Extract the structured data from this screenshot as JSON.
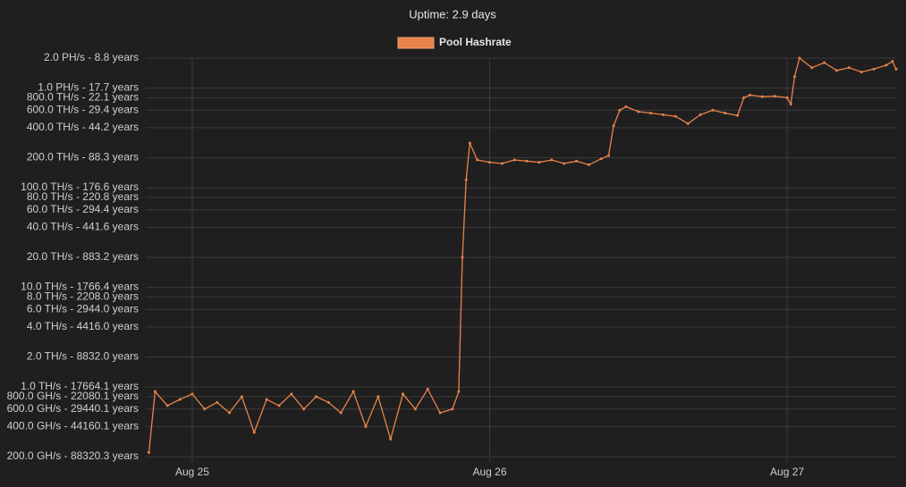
{
  "chart_data": {
    "type": "line",
    "title": "Uptime: 2.9 days",
    "x": [
      -3.5,
      -3,
      -2,
      -1,
      0,
      1,
      2,
      3,
      4,
      5,
      6,
      7,
      8,
      9,
      10,
      11,
      12,
      13,
      14,
      15,
      16,
      17,
      18,
      19,
      20,
      21,
      21.5,
      21.8,
      22.1,
      22.4,
      23,
      24,
      25,
      26,
      27,
      28,
      29,
      30,
      31,
      32,
      33,
      33.6,
      34,
      34.5,
      35,
      36,
      37,
      38,
      39,
      40,
      41,
      42,
      43,
      44,
      44.5,
      45,
      46,
      47,
      48,
      48.3,
      48.6,
      49,
      50,
      51,
      52,
      53,
      54,
      55,
      56,
      56.5,
      56.8
    ],
    "series": [
      {
        "name": "Pool Hashrate",
        "color": "#e8834a",
        "values": [
          0.22,
          0.9,
          0.65,
          0.75,
          0.85,
          0.6,
          0.7,
          0.55,
          0.8,
          0.35,
          0.75,
          0.65,
          0.85,
          0.6,
          0.8,
          0.7,
          0.55,
          0.9,
          0.4,
          0.8,
          0.3,
          0.85,
          0.6,
          0.95,
          0.55,
          0.6,
          0.9,
          20,
          120,
          280,
          190,
          180,
          175,
          190,
          185,
          180,
          190,
          175,
          185,
          170,
          195,
          210,
          420,
          600,
          650,
          580,
          560,
          540,
          520,
          440,
          540,
          600,
          560,
          530,
          800,
          850,
          820,
          830,
          800,
          690,
          1300,
          2000,
          1600,
          1800,
          1500,
          1600,
          1450,
          1550,
          1700,
          1850,
          1550
        ]
      }
    ],
    "xlim": [
      -3.75,
      56.8
    ],
    "xticks": [
      {
        "value": 0,
        "label": "Aug 25"
      },
      {
        "value": 24,
        "label": "Aug 26"
      },
      {
        "value": 48,
        "label": "Aug 27"
      }
    ],
    "ylim": [
      0.2,
      2000
    ],
    "log_scale": true,
    "grid": true,
    "legend": "top",
    "yticks": [
      {
        "value": 2000,
        "label": "2.0 PH/s - 8.8 years"
      },
      {
        "value": 1000,
        "label": "1.0 PH/s - 17.7 years"
      },
      {
        "value": 800,
        "label": "800.0 TH/s - 22.1 years"
      },
      {
        "value": 600,
        "label": "600.0 TH/s - 29.4 years"
      },
      {
        "value": 400,
        "label": "400.0 TH/s - 44.2 years"
      },
      {
        "value": 200,
        "label": "200.0 TH/s - 88.3 years"
      },
      {
        "value": 100,
        "label": "100.0 TH/s - 176.6 years"
      },
      {
        "value": 80,
        "label": "80.0 TH/s - 220.8 years"
      },
      {
        "value": 60,
        "label": "60.0 TH/s - 294.4 years"
      },
      {
        "value": 40,
        "label": "40.0 TH/s - 441.6 years"
      },
      {
        "value": 20,
        "label": "20.0 TH/s - 883.2 years"
      },
      {
        "value": 10,
        "label": "10.0 TH/s - 1766.4 years"
      },
      {
        "value": 8,
        "label": "8.0 TH/s - 2208.0 years"
      },
      {
        "value": 6,
        "label": "6.0 TH/s - 2944.0 years"
      },
      {
        "value": 4,
        "label": "4.0 TH/s - 4416.0 years"
      },
      {
        "value": 2,
        "label": "2.0 TH/s - 8832.0 years"
      },
      {
        "value": 1,
        "label": "1.0 TH/s - 17664.1 years"
      },
      {
        "value": 0.8,
        "label": "800.0 GH/s - 22080.1 years"
      },
      {
        "value": 0.6,
        "label": "600.0 GH/s - 29440.1 years"
      },
      {
        "value": 0.4,
        "label": "400.0 GH/s - 44160.1 years"
      },
      {
        "value": 0.2,
        "label": "200.0 GH/s - 88320.3 years"
      }
    ]
  }
}
